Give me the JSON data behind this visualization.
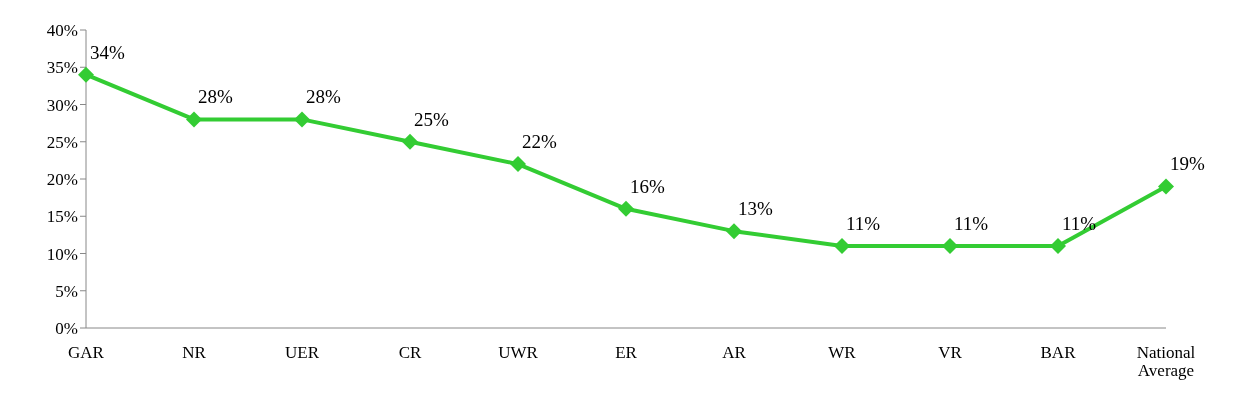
{
  "chart_data": {
    "type": "line",
    "categories": [
      "GAR",
      "NR",
      "UER",
      "CR",
      "UWR",
      "ER",
      "AR",
      "WR",
      "VR",
      "BAR",
      "National Average"
    ],
    "series": [
      {
        "color": "#33cc33",
        "values": [
          34,
          28,
          28,
          25,
          22,
          16,
          13,
          11,
          11,
          11,
          19
        ],
        "value_labels": [
          "34%",
          "28%",
          "28%",
          "25%",
          "22%",
          "16%",
          "13%",
          "11%",
          "11%",
          "11%",
          "19%"
        ]
      }
    ],
    "ylim": [
      0,
      40
    ],
    "yticks": [
      {
        "value": 0,
        "label": "0%"
      },
      {
        "value": 5,
        "label": "5%"
      },
      {
        "value": 10,
        "label": "10%"
      },
      {
        "value": 15,
        "label": "15%"
      },
      {
        "value": 20,
        "label": "20%"
      },
      {
        "value": 25,
        "label": "25%"
      },
      {
        "value": 30,
        "label": "30%"
      },
      {
        "value": 35,
        "label": "35%"
      },
      {
        "value": 40,
        "label": "40%"
      }
    ],
    "grid": false,
    "legend": false,
    "marker": "diamond",
    "line_style": "solid"
  }
}
